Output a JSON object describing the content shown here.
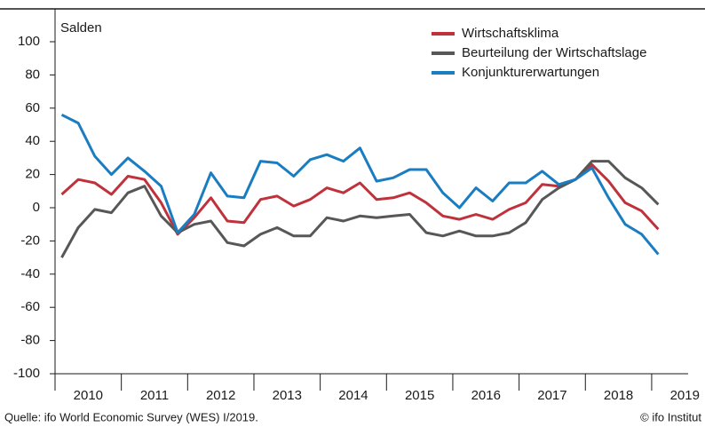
{
  "chart_data": {
    "type": "line",
    "y_axis_label": "Salden",
    "x": [
      2010,
      2010.25,
      2010.5,
      2010.75,
      2011,
      2011.25,
      2011.5,
      2011.75,
      2012,
      2012.25,
      2012.5,
      2012.75,
      2013,
      2013.25,
      2013.5,
      2013.75,
      2014,
      2014.25,
      2014.5,
      2014.75,
      2015,
      2015.25,
      2015.5,
      2015.75,
      2016,
      2016.25,
      2016.5,
      2016.75,
      2017,
      2017.25,
      2017.5,
      2017.75,
      2018,
      2018.25,
      2018.5,
      2018.75,
      2019
    ],
    "series": [
      {
        "name": "Wirtschaftsklima",
        "color": "#c0323b",
        "values": [
          8,
          17,
          15,
          8,
          19,
          17,
          3,
          -16,
          -6,
          6,
          -8,
          -9,
          5,
          7,
          1,
          5,
          12,
          9,
          15,
          5,
          6,
          9,
          3,
          -5,
          -7,
          -4,
          -7,
          -1,
          3,
          14,
          13,
          17,
          26,
          16,
          3,
          -2,
          -13
        ]
      },
      {
        "name": "Beurteilung der Wirtschaftslage",
        "color": "#575757",
        "values": [
          -30,
          -12,
          -1,
          -3,
          9,
          13,
          -5,
          -15,
          -10,
          -8,
          -21,
          -23,
          -16,
          -12,
          -17,
          -17,
          -6,
          -8,
          -5,
          -6,
          -5,
          -4,
          -15,
          -17,
          -14,
          -17,
          -17,
          -15,
          -9,
          5,
          12,
          17,
          28,
          28,
          18,
          12,
          2
        ]
      },
      {
        "name": "Konjunkturerwartungen",
        "color": "#1a7cc1",
        "values": [
          56,
          51,
          31,
          20,
          30,
          22,
          13,
          -15,
          -4,
          21,
          7,
          6,
          28,
          27,
          19,
          29,
          32,
          28,
          36,
          16,
          18,
          23,
          23,
          9,
          0,
          12,
          4,
          15,
          15,
          22,
          14,
          17,
          24,
          6,
          -10,
          -16,
          -28
        ]
      }
    ],
    "xlim": [
      2009.9,
      2019.45
    ],
    "xticks": [
      {
        "value": 2010.4,
        "label": "2010"
      },
      {
        "value": 2011.4,
        "label": "2011"
      },
      {
        "value": 2012.4,
        "label": "2012"
      },
      {
        "value": 2013.4,
        "label": "2013"
      },
      {
        "value": 2014.4,
        "label": "2014"
      },
      {
        "value": 2015.4,
        "label": "2015"
      },
      {
        "value": 2016.4,
        "label": "2016"
      },
      {
        "value": 2017.4,
        "label": "2017"
      },
      {
        "value": 2018.4,
        "label": "2018"
      },
      {
        "value": 2019.4,
        "label": "2019"
      }
    ],
    "ylim": [
      -100,
      100
    ],
    "yticks": [
      -100,
      -80,
      -60,
      -40,
      -20,
      0,
      20,
      40,
      60,
      80,
      100
    ],
    "legend": "top-right",
    "source": "Quelle: ifo World Economic Survey (WES) I/2019.",
    "copyright": "© ifo Institut"
  }
}
